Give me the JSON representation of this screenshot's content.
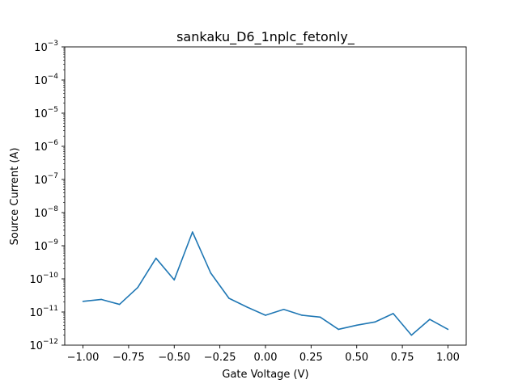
{
  "chart_data": {
    "type": "line",
    "title": "sankaku_D6_1nplc_fetonly_",
    "xlabel": "Gate Voltage (V)",
    "ylabel": "Source Current (A)",
    "xlim": [
      -1.1,
      1.1
    ],
    "ylim": [
      1e-12,
      0.001
    ],
    "yscale": "log",
    "grid": false,
    "x_ticks": [
      -1.0,
      -0.75,
      -0.5,
      -0.25,
      0.0,
      0.25,
      0.5,
      0.75,
      1.0
    ],
    "x_tick_labels": [
      "−1.00",
      "−0.75",
      "−0.50",
      "−0.25",
      "0.00",
      "0.25",
      "0.50",
      "0.75",
      "1.00"
    ],
    "y_ticks": [
      1e-12,
      1e-11,
      1e-10,
      1e-09,
      1e-08,
      1e-07,
      1e-06,
      1e-05,
      0.0001,
      0.001
    ],
    "y_tick_mantissa": "10",
    "y_tick_exponents": [
      "−12",
      "−11",
      "−10",
      "−9",
      "−8",
      "−7",
      "−6",
      "−5",
      "−4",
      "−3"
    ],
    "series": [
      {
        "color": "#1f77b4",
        "x": [
          -1.0,
          -0.9,
          -0.8,
          -0.7,
          -0.6,
          -0.5,
          -0.4,
          -0.3,
          -0.2,
          -0.1,
          0.0,
          0.1,
          0.2,
          0.3,
          0.4,
          0.5,
          0.6,
          0.7,
          0.8,
          0.9,
          1.0
        ],
        "y": [
          2.1e-11,
          2.4e-11,
          1.7e-11,
          5.5e-11,
          4.2e-10,
          9.3e-11,
          2.6e-09,
          1.5e-10,
          2.6e-11,
          1.4e-11,
          8e-12,
          1.2e-11,
          8e-12,
          7e-12,
          3e-12,
          4e-12,
          5e-12,
          9e-12,
          2e-12,
          6e-12,
          3e-12
        ]
      }
    ]
  }
}
